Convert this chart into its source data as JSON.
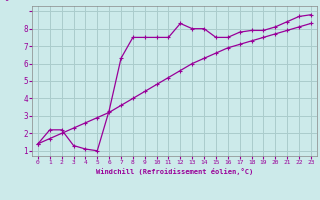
{
  "xlabel": "Windchill (Refroidissement éolien,°C)",
  "bg_color": "#cceaea",
  "grid_color": "#aacccc",
  "line_color": "#990099",
  "marker_color": "#990099",
  "xlim": [
    -0.5,
    23.5
  ],
  "ylim": [
    0.7,
    9.3
  ],
  "xticks": [
    0,
    1,
    2,
    3,
    4,
    5,
    6,
    7,
    8,
    9,
    10,
    11,
    12,
    13,
    14,
    15,
    16,
    17,
    18,
    19,
    20,
    21,
    22,
    23
  ],
  "yticks": [
    1,
    2,
    3,
    4,
    5,
    6,
    7,
    8,
    9
  ],
  "series1_x": [
    0,
    1,
    2,
    3,
    4,
    5,
    6,
    7,
    8,
    9,
    10,
    11,
    12,
    13,
    14,
    15,
    16,
    17,
    18,
    19,
    20,
    21,
    22,
    23
  ],
  "series1_y": [
    1.4,
    2.2,
    2.2,
    1.3,
    1.1,
    1.0,
    3.3,
    6.3,
    7.5,
    7.5,
    7.5,
    7.5,
    8.3,
    8.0,
    8.0,
    7.5,
    7.5,
    7.8,
    7.9,
    7.9,
    8.1,
    8.4,
    8.7,
    8.8
  ],
  "series2_x": [
    0,
    1,
    2,
    3,
    4,
    5,
    6,
    7,
    8,
    9,
    10,
    11,
    12,
    13,
    14,
    15,
    16,
    17,
    18,
    19,
    20,
    21,
    22,
    23
  ],
  "series2_y": [
    1.4,
    1.7,
    2.0,
    2.3,
    2.6,
    2.9,
    3.2,
    3.6,
    4.0,
    4.4,
    4.8,
    5.2,
    5.6,
    6.0,
    6.3,
    6.6,
    6.9,
    7.1,
    7.3,
    7.5,
    7.7,
    7.9,
    8.1,
    8.3
  ]
}
